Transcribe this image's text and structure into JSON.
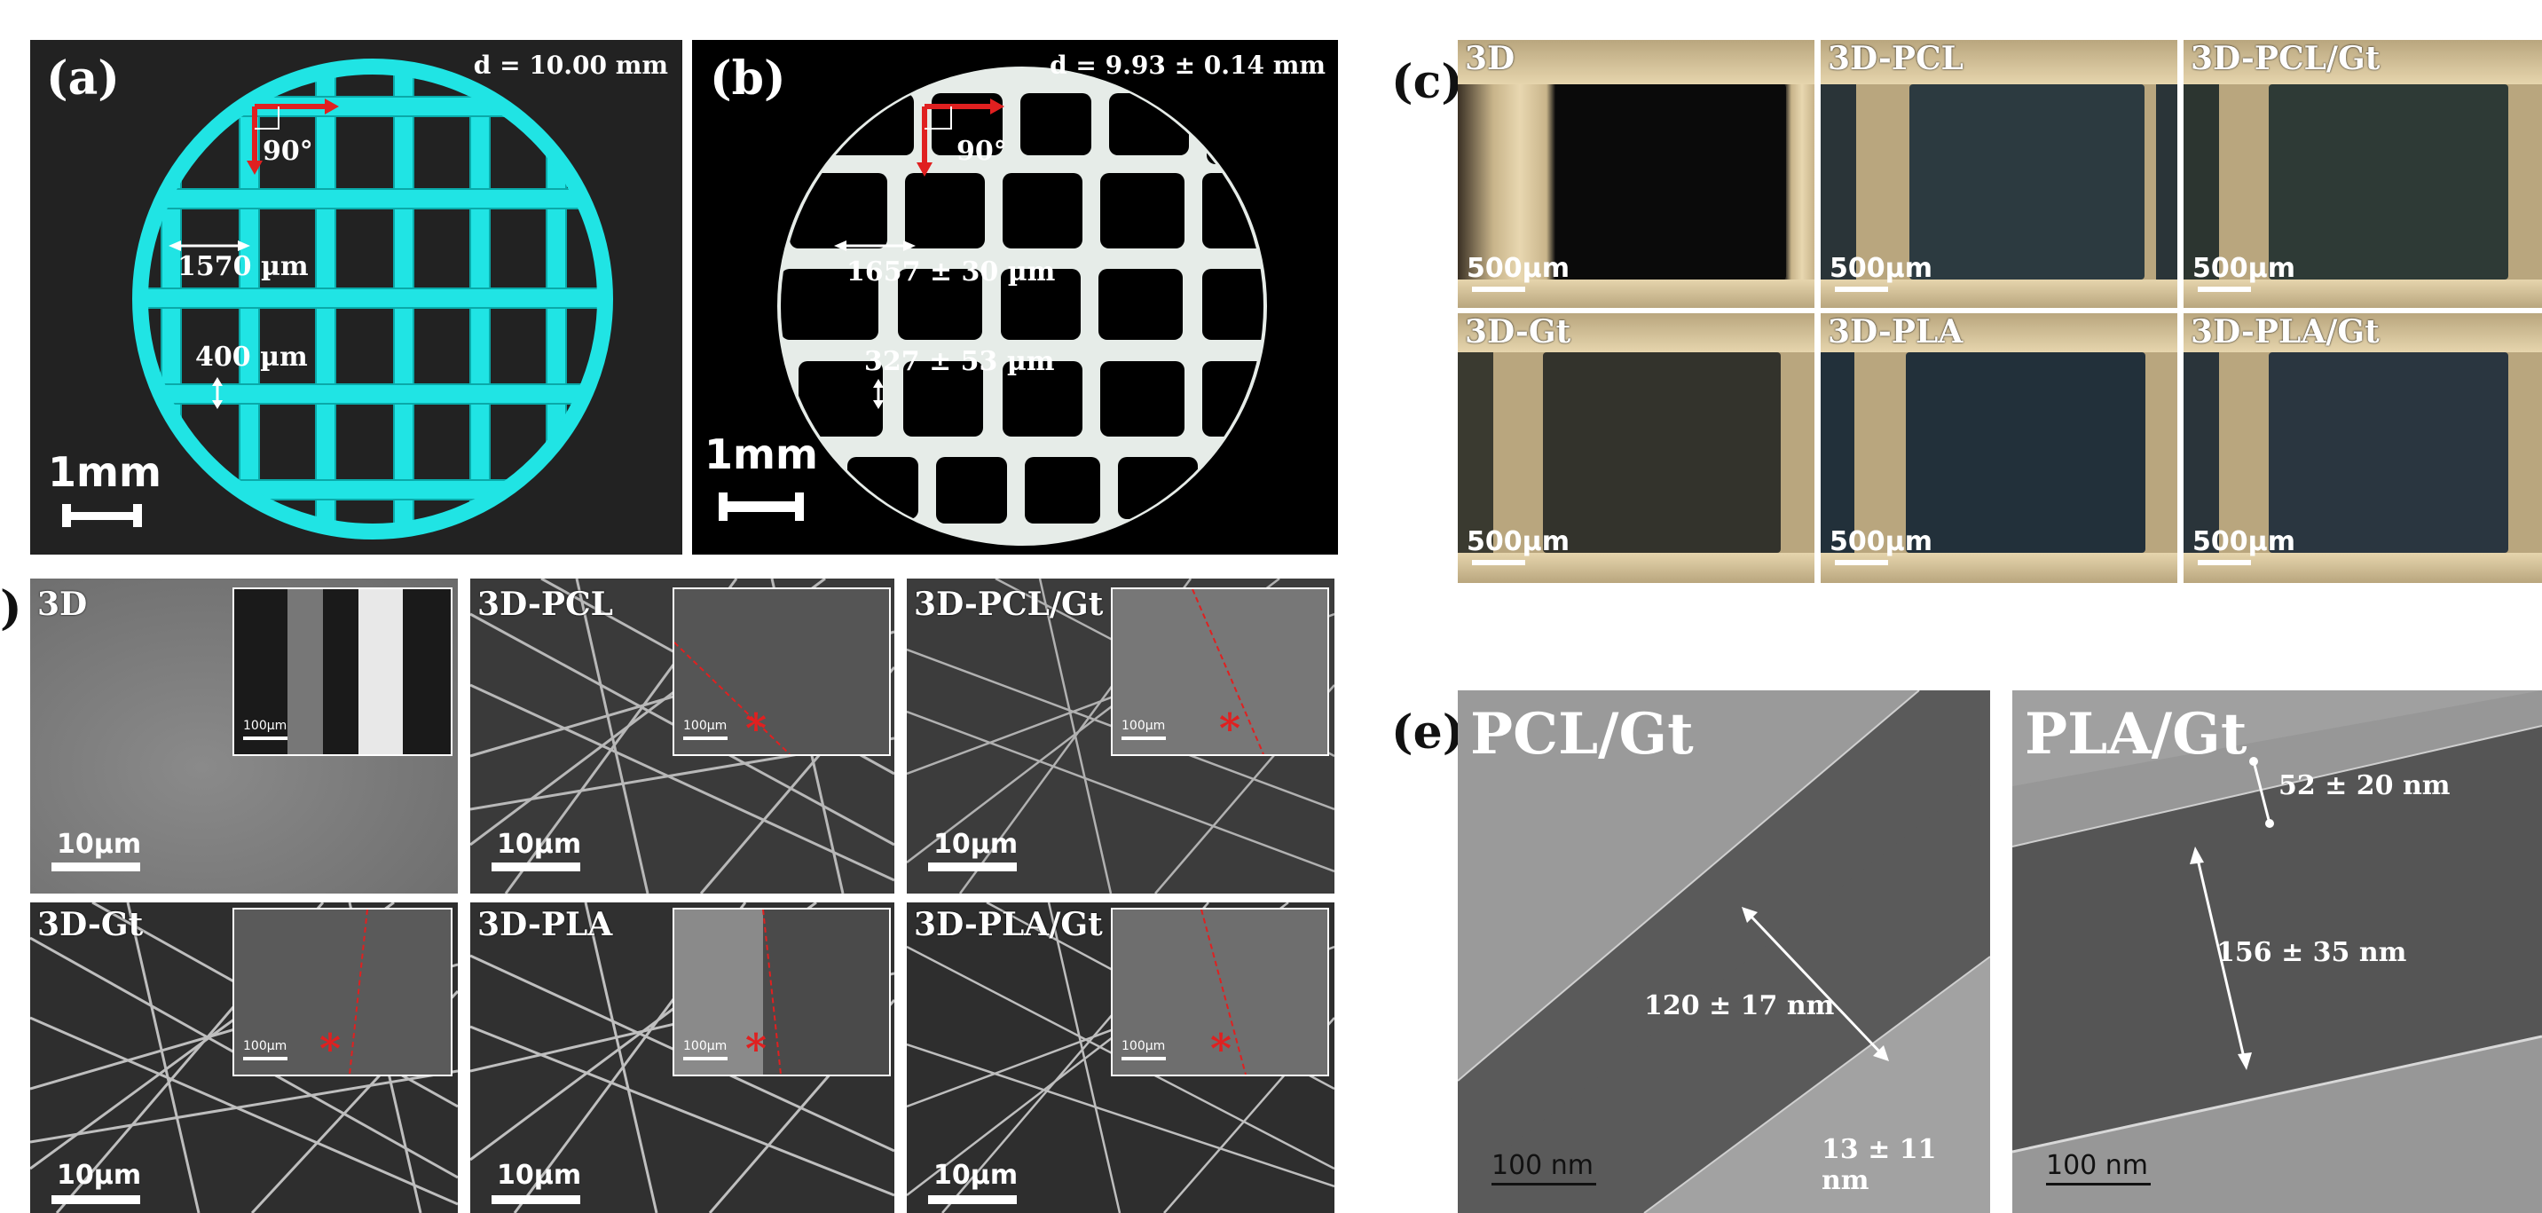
{
  "panel_a": {
    "letter": "(a)",
    "diameter": "d = 10.00 mm",
    "angle": "90°",
    "spacing": "1570 µm",
    "strut": "400 µm",
    "scale": "1mm",
    "colors": {
      "bg": "#222222",
      "scaffold": "#20e4e4"
    }
  },
  "panel_b": {
    "letter": "(b)",
    "diameter": "d = 9.93 ± 0.14 mm",
    "angle": "90°",
    "spacing": "1657 ± 30 µm",
    "strut": "327 ± 53 µm",
    "scale": "1mm",
    "colors": {
      "bg": "#000000",
      "scaffold": "#e6ece8"
    }
  },
  "panel_c": {
    "letter": "(c)",
    "tiles": [
      {
        "label": "3D",
        "scale": "500µm"
      },
      {
        "label": "3D-PCL",
        "scale": "500µm"
      },
      {
        "label": "3D-PCL/Gt",
        "scale": "500µm"
      },
      {
        "label": "3D-Gt",
        "scale": "500µm"
      },
      {
        "label": "3D-PLA",
        "scale": "500µm"
      },
      {
        "label": "3D-PLA/Gt",
        "scale": "500µm"
      }
    ]
  },
  "panel_d": {
    "letter": ")",
    "tiles": [
      {
        "label": "3D",
        "scale": "10µm",
        "inset_scale": "100µm"
      },
      {
        "label": "3D-PCL",
        "scale": "10µm",
        "inset_scale": "100µm"
      },
      {
        "label": "3D-PCL/Gt",
        "scale": "10µm",
        "inset_scale": "100µm"
      },
      {
        "label": "3D-Gt",
        "scale": "10µm",
        "inset_scale": "100µm"
      },
      {
        "label": "3D-PLA",
        "scale": "10µm",
        "inset_scale": "100µm"
      },
      {
        "label": "3D-PLA/Gt",
        "scale": "10µm",
        "inset_scale": "100µm"
      }
    ],
    "asterisk": "*"
  },
  "panel_e": {
    "letter": "(e)",
    "left": {
      "label": "PCL/Gt",
      "fiber": "120 ± 17 nm",
      "shell": "13 ± 11 nm",
      "scale": "100 nm"
    },
    "right": {
      "label": "PLA/Gt",
      "shell": "52 ± 20 nm",
      "fiber": "156 ± 35 nm",
      "scale": "100 nm"
    }
  }
}
